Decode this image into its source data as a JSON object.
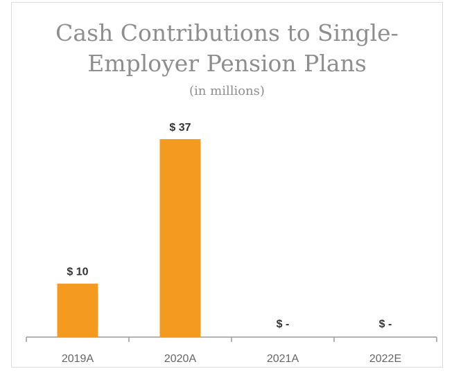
{
  "chart_data": {
    "type": "bar",
    "title_lines": [
      "Cash Contributions to Single-",
      "Employer Pension Plans"
    ],
    "subtitle": "(in millions)",
    "categories": [
      "2019A",
      "2020A",
      "2021A",
      "2022E"
    ],
    "values": [
      10,
      37,
      0,
      0
    ],
    "data_labels": [
      "$ 10",
      "$ 37",
      "$ -",
      "$ -"
    ],
    "bar_color": "#f39a1f",
    "ylim": [
      0,
      40
    ],
    "grid": false,
    "legend": "none",
    "xlabel": "",
    "ylabel": ""
  }
}
